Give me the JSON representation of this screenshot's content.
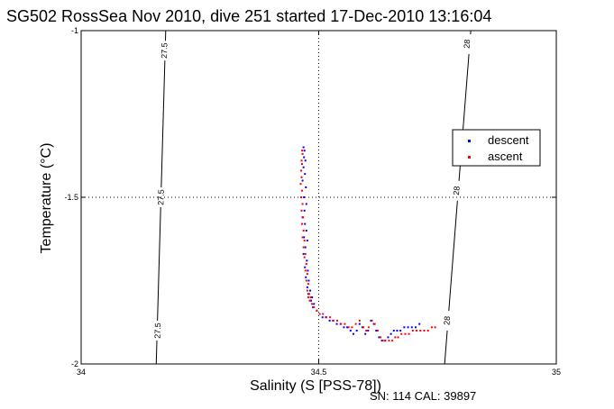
{
  "chart_data": {
    "type": "scatter",
    "title": "SG502 RossSea Nov 2010, dive 251 started 17-Dec-2010 13:16:04",
    "xlabel": "Salinity (S [PSS-78])",
    "ylabel": "Temperature (°C)",
    "xlim": [
      34,
      35
    ],
    "ylim": [
      -2,
      -1
    ],
    "x_ticks": [
      {
        "value": 34,
        "label": "34"
      },
      {
        "value": 34.5,
        "label": "34.5"
      },
      {
        "value": 35,
        "label": "35"
      }
    ],
    "y_ticks": [
      {
        "value": -2,
        "label": "-2"
      },
      {
        "value": -1.5,
        "label": "-1.5"
      },
      {
        "value": -1,
        "label": "-1"
      }
    ],
    "grid": "dotted lines at the middle ticks",
    "legend_position": "upper-right",
    "note": "SN: 114  CAL: 39897",
    "density_contours": [
      {
        "label": "27.5",
        "points": [
          [
            34.158,
            -2.0
          ],
          [
            34.178,
            -1.0
          ]
        ],
        "label_positions": [
          [
            34.175,
            -1.06
          ],
          [
            34.168,
            -1.5
          ],
          [
            34.161,
            -1.9
          ]
        ]
      },
      {
        "label": "28",
        "points": [
          [
            34.765,
            -2.0
          ],
          [
            34.82,
            -1.0
          ]
        ],
        "label_positions": [
          [
            34.812,
            -1.04
          ],
          [
            34.79,
            -1.48
          ],
          [
            34.77,
            -1.87
          ]
        ]
      }
    ],
    "series": [
      {
        "name": "descent",
        "color": "#0000ff",
        "x": [
          34.468,
          34.47,
          34.469,
          34.472,
          34.468,
          34.471,
          34.466,
          34.473,
          34.469,
          34.474,
          34.47,
          34.466,
          34.471,
          34.474,
          34.469,
          34.476,
          34.472,
          34.468,
          34.475,
          34.471,
          34.477,
          34.473,
          34.479,
          34.476,
          34.482,
          34.478,
          34.486,
          34.484,
          34.49,
          34.488,
          34.496,
          34.502,
          34.508,
          34.515,
          34.523,
          34.53,
          34.538,
          34.546,
          34.553,
          34.56,
          34.567,
          34.573,
          34.58,
          34.586,
          34.592,
          34.598,
          34.604,
          34.61,
          34.616,
          34.621,
          34.627,
          34.633,
          34.64,
          34.646,
          34.652,
          34.658,
          34.665,
          34.672,
          34.68,
          34.688,
          34.696,
          34.704,
          34.712
        ],
        "y": [
          -1.35,
          -1.36,
          -1.38,
          -1.39,
          -1.41,
          -1.43,
          -1.45,
          -1.47,
          -1.5,
          -1.52,
          -1.54,
          -1.56,
          -1.58,
          -1.6,
          -1.62,
          -1.63,
          -1.65,
          -1.67,
          -1.69,
          -1.71,
          -1.72,
          -1.74,
          -1.75,
          -1.77,
          -1.78,
          -1.79,
          -1.8,
          -1.81,
          -1.82,
          -1.83,
          -1.84,
          -1.85,
          -1.86,
          -1.86,
          -1.87,
          -1.87,
          -1.88,
          -1.88,
          -1.89,
          -1.89,
          -1.9,
          -1.91,
          -1.9,
          -1.88,
          -1.89,
          -1.91,
          -1.9,
          -1.87,
          -1.88,
          -1.9,
          -1.92,
          -1.93,
          -1.93,
          -1.92,
          -1.91,
          -1.9,
          -1.9,
          -1.9,
          -1.89,
          -1.89,
          -1.89,
          -1.89,
          -1.88
        ]
      },
      {
        "name": "ascent",
        "color": "#ff0000",
        "x": [
          34.465,
          34.466,
          34.464,
          34.465,
          34.463,
          34.464,
          34.462,
          34.465,
          34.463,
          34.466,
          34.464,
          34.467,
          34.465,
          34.468,
          34.466,
          34.47,
          34.468,
          34.472,
          34.47,
          34.474,
          34.472,
          34.476,
          34.474,
          34.478,
          34.476,
          34.48,
          34.478,
          34.483,
          34.481,
          34.486,
          34.49,
          34.496,
          34.502,
          34.509,
          34.516,
          34.524,
          34.531,
          34.539,
          34.547,
          34.555,
          34.563,
          34.57,
          34.578,
          34.586,
          34.594,
          34.6,
          34.605,
          34.612,
          34.618,
          34.624,
          34.63,
          34.635,
          34.64,
          34.648,
          34.655,
          34.661,
          34.667,
          34.674,
          34.682,
          34.69,
          34.698,
          34.706,
          34.714,
          34.722,
          34.73,
          34.738,
          34.745
        ],
        "y": [
          -1.36,
          -1.37,
          -1.39,
          -1.4,
          -1.42,
          -1.44,
          -1.46,
          -1.48,
          -1.5,
          -1.52,
          -1.54,
          -1.56,
          -1.58,
          -1.6,
          -1.62,
          -1.63,
          -1.65,
          -1.67,
          -1.68,
          -1.7,
          -1.72,
          -1.73,
          -1.75,
          -1.76,
          -1.78,
          -1.79,
          -1.8,
          -1.8,
          -1.81,
          -1.82,
          -1.83,
          -1.84,
          -1.85,
          -1.85,
          -1.86,
          -1.86,
          -1.87,
          -1.87,
          -1.88,
          -1.88,
          -1.89,
          -1.89,
          -1.88,
          -1.87,
          -1.89,
          -1.9,
          -1.89,
          -1.87,
          -1.88,
          -1.9,
          -1.92,
          -1.93,
          -1.93,
          -1.93,
          -1.93,
          -1.92,
          -1.92,
          -1.91,
          -1.91,
          -1.91,
          -1.9,
          -1.9,
          -1.9,
          -1.9,
          -1.9,
          -1.89,
          -1.89
        ]
      }
    ]
  }
}
